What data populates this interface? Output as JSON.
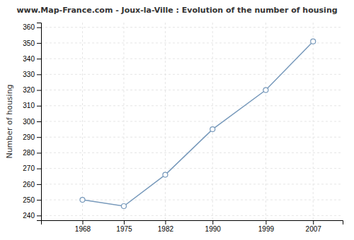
{
  "chart_data": {
    "type": "line",
    "title": "www.Map-France.com - Joux-la-Ville : Evolution of the number of housing",
    "ylabel": "Number of housing",
    "x": [
      1968,
      1975,
      1982,
      1990,
      1999,
      2007
    ],
    "values": [
      250,
      246,
      266,
      295,
      320,
      351
    ],
    "xlim": [
      1961,
      2012
    ],
    "xticks": [
      1968,
      1975,
      1982,
      1990,
      1999,
      2007
    ],
    "ylim": [
      237,
      363
    ],
    "yticks": [
      240,
      250,
      260,
      270,
      280,
      290,
      300,
      310,
      320,
      330,
      340,
      350,
      360
    ],
    "color": "#7799bb",
    "marker": "o",
    "grid": true
  }
}
